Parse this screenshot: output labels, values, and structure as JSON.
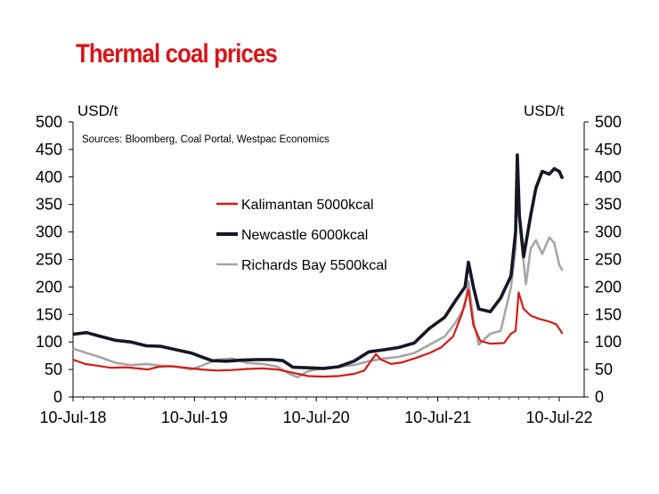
{
  "title": "Thermal coal prices",
  "colors": {
    "title": "#d7151a",
    "kalimantan": "#d41b17",
    "newcastle": "#151724",
    "richards_bay": "#a6a6a6"
  },
  "chart_data": {
    "type": "line",
    "title": "Thermal coal prices",
    "ylabel_left": "USD/t",
    "ylabel_right": "USD/t",
    "source": "Sources: Bloomberg, Coal Portal, Westpac Economics",
    "xlim": [
      "2018-07-10",
      "2022-07-10"
    ],
    "ylim": [
      0,
      500
    ],
    "x_ticks": [
      "10-Jul-18",
      "10-Jul-19",
      "10-Jul-20",
      "10-Jul-21",
      "10-Jul-22"
    ],
    "y_ticks": [
      0,
      50,
      100,
      150,
      200,
      250,
      300,
      350,
      400,
      450,
      500
    ],
    "legend_position": "center",
    "series": [
      {
        "name": "Kalimantan 5000kcal",
        "color": "#d41b17",
        "points": [
          [
            "2018-07-10",
            68
          ],
          [
            "2018-08-15",
            60
          ],
          [
            "2018-09-20",
            57
          ],
          [
            "2018-11-01",
            53
          ],
          [
            "2018-12-15",
            54
          ],
          [
            "2019-01-20",
            52
          ],
          [
            "2019-02-20",
            50
          ],
          [
            "2019-03-25",
            55
          ],
          [
            "2019-05-01",
            56
          ],
          [
            "2019-06-15",
            53
          ],
          [
            "2019-08-01",
            50
          ],
          [
            "2019-09-15",
            48
          ],
          [
            "2019-11-01",
            49
          ],
          [
            "2019-12-15",
            51
          ],
          [
            "2020-01-31",
            52
          ],
          [
            "2020-03-15",
            50
          ],
          [
            "2020-05-01",
            44
          ],
          [
            "2020-06-15",
            38
          ],
          [
            "2020-08-01",
            37
          ],
          [
            "2020-09-15",
            38
          ],
          [
            "2020-11-01",
            42
          ],
          [
            "2020-12-01",
            48
          ],
          [
            "2021-01-05",
            78
          ],
          [
            "2021-01-20",
            68
          ],
          [
            "2021-02-20",
            60
          ],
          [
            "2021-03-25",
            63
          ],
          [
            "2021-05-01",
            70
          ],
          [
            "2021-06-15",
            80
          ],
          [
            "2021-07-20",
            90
          ],
          [
            "2021-08-25",
            110
          ],
          [
            "2021-09-20",
            150
          ],
          [
            "2021-10-10",
            195
          ],
          [
            "2021-10-25",
            130
          ],
          [
            "2021-11-15",
            102
          ],
          [
            "2021-12-15",
            97
          ],
          [
            "2022-01-25",
            98
          ],
          [
            "2022-02-15",
            115
          ],
          [
            "2022-03-01",
            120
          ],
          [
            "2022-03-10",
            190
          ],
          [
            "2022-03-25",
            160
          ],
          [
            "2022-04-15",
            148
          ],
          [
            "2022-05-10",
            142
          ],
          [
            "2022-06-10",
            137
          ],
          [
            "2022-07-01",
            132
          ],
          [
            "2022-07-20",
            115
          ]
        ]
      },
      {
        "name": "Newcastle 6000kcal",
        "color": "#151724",
        "points": [
          [
            "2018-07-10",
            114
          ],
          [
            "2018-08-20",
            117
          ],
          [
            "2018-10-01",
            110
          ],
          [
            "2018-11-15",
            103
          ],
          [
            "2018-12-31",
            100
          ],
          [
            "2019-02-15",
            93
          ],
          [
            "2019-03-31",
            92
          ],
          [
            "2019-05-15",
            86
          ],
          [
            "2019-06-30",
            80
          ],
          [
            "2019-07-31",
            73
          ],
          [
            "2019-09-01",
            66
          ],
          [
            "2019-10-15",
            65
          ],
          [
            "2019-11-30",
            67
          ],
          [
            "2020-01-15",
            68
          ],
          [
            "2020-02-28",
            68
          ],
          [
            "2020-04-01",
            66
          ],
          [
            "2020-05-01",
            54
          ],
          [
            "2020-06-15",
            53
          ],
          [
            "2020-08-01",
            52
          ],
          [
            "2020-09-15",
            55
          ],
          [
            "2020-10-31",
            65
          ],
          [
            "2020-12-15",
            82
          ],
          [
            "2021-01-31",
            86
          ],
          [
            "2021-03-15",
            90
          ],
          [
            "2021-04-30",
            98
          ],
          [
            "2021-06-15",
            125
          ],
          [
            "2021-07-31",
            145
          ],
          [
            "2021-09-01",
            175
          ],
          [
            "2021-09-30",
            200
          ],
          [
            "2021-10-10",
            245
          ],
          [
            "2021-10-25",
            200
          ],
          [
            "2021-11-10",
            160
          ],
          [
            "2021-12-15",
            155
          ],
          [
            "2022-01-15",
            180
          ],
          [
            "2022-02-15",
            220
          ],
          [
            "2022-03-01",
            300
          ],
          [
            "2022-03-06",
            440
          ],
          [
            "2022-03-12",
            330
          ],
          [
            "2022-03-25",
            255
          ],
          [
            "2022-04-15",
            330
          ],
          [
            "2022-05-01",
            380
          ],
          [
            "2022-05-20",
            410
          ],
          [
            "2022-06-10",
            405
          ],
          [
            "2022-06-25",
            415
          ],
          [
            "2022-07-10",
            410
          ],
          [
            "2022-07-20",
            397
          ]
        ]
      },
      {
        "name": "Richards Bay 5500kcal",
        "color": "#a6a6a6",
        "points": [
          [
            "2018-07-10",
            88
          ],
          [
            "2018-08-20",
            80
          ],
          [
            "2018-10-01",
            72
          ],
          [
            "2018-11-15",
            62
          ],
          [
            "2018-12-31",
            58
          ],
          [
            "2019-02-15",
            60
          ],
          [
            "2019-03-31",
            57
          ],
          [
            "2019-05-15",
            55
          ],
          [
            "2019-06-30",
            50
          ],
          [
            "2019-08-01",
            57
          ],
          [
            "2019-09-15",
            68
          ],
          [
            "2019-10-31",
            70
          ],
          [
            "2019-12-15",
            62
          ],
          [
            "2020-01-31",
            60
          ],
          [
            "2020-03-15",
            55
          ],
          [
            "2020-04-20",
            42
          ],
          [
            "2020-05-15",
            36
          ],
          [
            "2020-06-15",
            47
          ],
          [
            "2020-08-01",
            52
          ],
          [
            "2020-09-15",
            55
          ],
          [
            "2020-10-31",
            58
          ],
          [
            "2020-12-15",
            65
          ],
          [
            "2021-01-31",
            70
          ],
          [
            "2021-03-15",
            73
          ],
          [
            "2021-04-30",
            80
          ],
          [
            "2021-06-15",
            95
          ],
          [
            "2021-07-31",
            110
          ],
          [
            "2021-09-01",
            135
          ],
          [
            "2021-09-30",
            165
          ],
          [
            "2021-10-10",
            210
          ],
          [
            "2021-10-25",
            140
          ],
          [
            "2021-11-10",
            95
          ],
          [
            "2021-12-15",
            115
          ],
          [
            "2022-01-15",
            120
          ],
          [
            "2022-02-15",
            200
          ],
          [
            "2022-03-01",
            270
          ],
          [
            "2022-03-06",
            425
          ],
          [
            "2022-03-15",
            300
          ],
          [
            "2022-04-01",
            205
          ],
          [
            "2022-04-15",
            270
          ],
          [
            "2022-05-01",
            285
          ],
          [
            "2022-05-20",
            260
          ],
          [
            "2022-06-10",
            290
          ],
          [
            "2022-06-25",
            280
          ],
          [
            "2022-07-10",
            240
          ],
          [
            "2022-07-20",
            230
          ]
        ]
      }
    ]
  }
}
